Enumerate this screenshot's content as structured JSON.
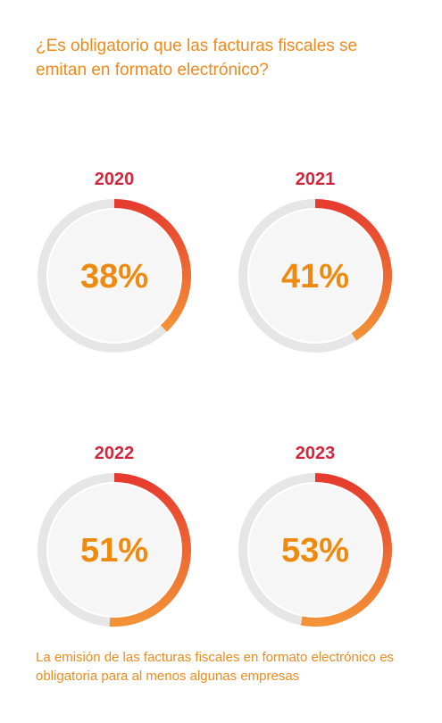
{
  "question": "¿Es obligatorio que las facturas fiscales se emitan en formato electrónico?",
  "footnote": "La emisión de las facturas fiscales en formato electrónico es obligatoria para al menos algunas empresas",
  "colors": {
    "text_accent": "#ee8a1d",
    "year_label": "#d0273d",
    "arc_start": "#e63b2e",
    "arc_end": "#f39237",
    "track": "#e6e6e6",
    "inner_fill": "#f6f6f6"
  },
  "chart_data": [
    {
      "type": "pie",
      "year": "2020",
      "value": 38,
      "label": "38%"
    },
    {
      "type": "pie",
      "year": "2021",
      "value": 41,
      "label": "41%"
    },
    {
      "type": "pie",
      "year": "2022",
      "value": 51,
      "label": "51%"
    },
    {
      "type": "pie",
      "year": "2023",
      "value": 53,
      "label": "53%"
    }
  ]
}
